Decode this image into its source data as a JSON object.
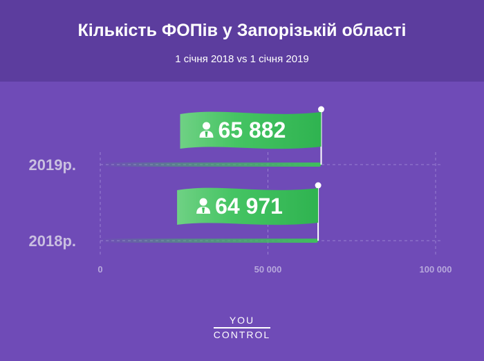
{
  "header": {
    "title": "Кількість ФОПів у Запорізькій області",
    "subtitle": "1 січня 2018  vs  1 січня 2019"
  },
  "chart_data": {
    "type": "bar",
    "orientation": "horizontal",
    "categories": [
      "2019р.",
      "2018р."
    ],
    "values": [
      65882,
      64971
    ],
    "value_labels": [
      "65 882",
      "64 971"
    ],
    "xlim": [
      0,
      100000
    ],
    "x_ticks": [
      0,
      50000,
      100000
    ],
    "x_tick_labels": [
      "0",
      "50 000",
      "100 000"
    ],
    "grid": true,
    "icon": "person-icon"
  },
  "colors": {
    "background": "#6f4bb7",
    "header_background": "#5c3d9e",
    "bar": "#3fbf5c",
    "label_flag": "#3fbf5c",
    "category_text": "#c9bfe0",
    "tick_text": "#b7a8dc"
  },
  "logo": {
    "line1": "YOU",
    "line2": "CONTROL"
  }
}
